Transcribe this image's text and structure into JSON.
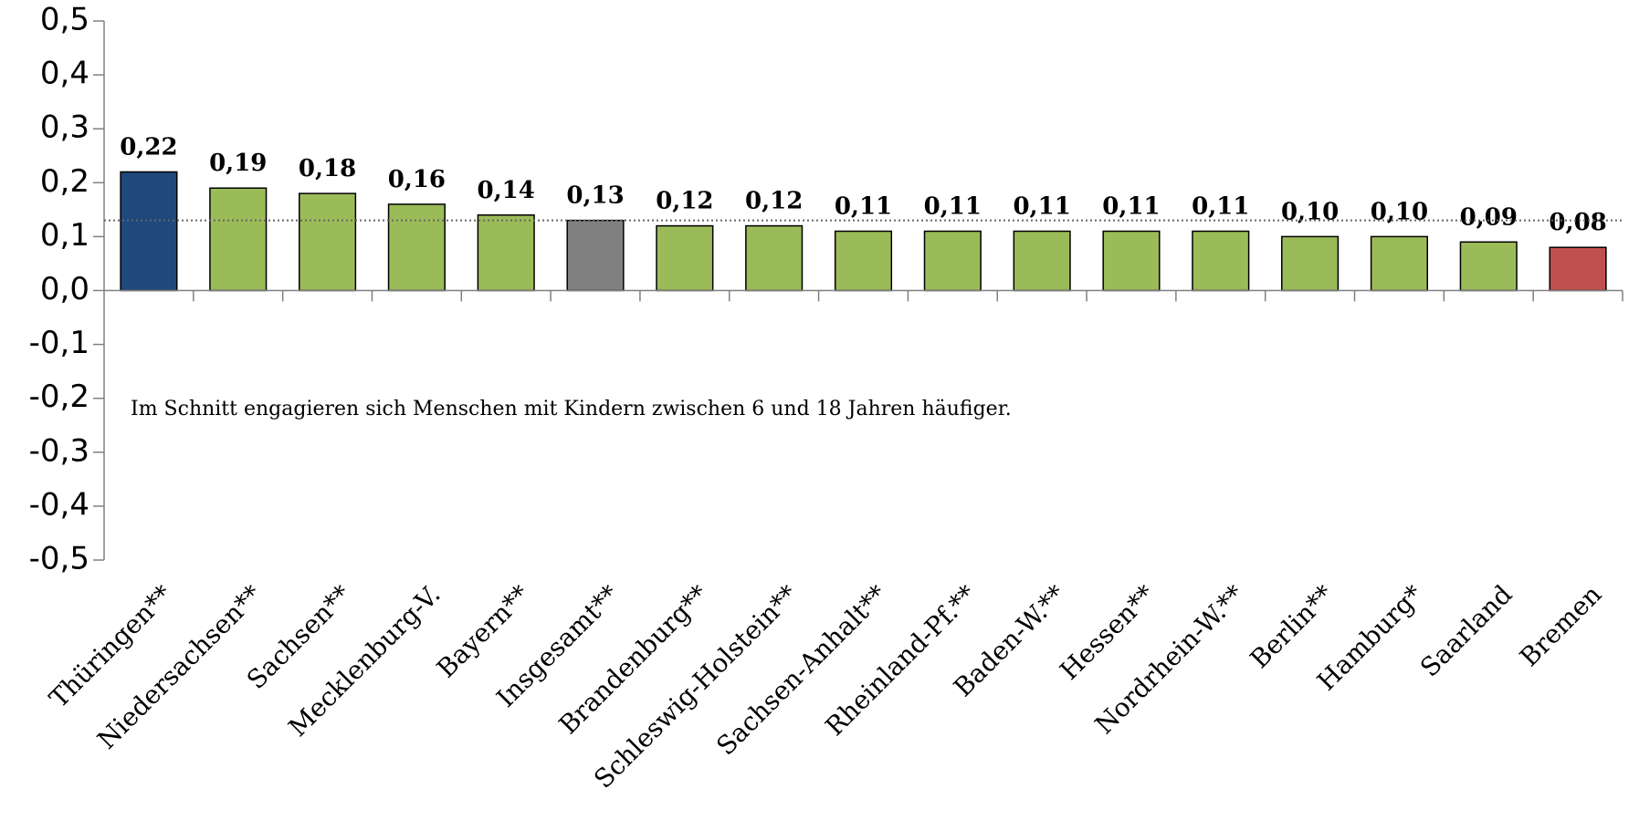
{
  "chart_data": {
    "type": "bar",
    "annotation": "Im Schnitt engagieren sich Menschen mit Kindern zwischen 6 und 18 Jahren häufiger.",
    "categories": [
      "Thüringen**",
      "Niedersachsen**",
      "Sachsen**",
      "Mecklenburg-V.",
      "Bayern**",
      "Insgesamt**",
      "Brandenburg**",
      "Schleswig-Holstein**",
      "Sachsen-Anhalt**",
      "Rheinland-Pf.**",
      "Baden-W.**",
      "Hessen**",
      "Nordrhein-W.**",
      "Berlin**",
      "Hamburg*",
      "Saarland",
      "Bremen"
    ],
    "values": [
      0.22,
      0.19,
      0.18,
      0.16,
      0.14,
      0.13,
      0.12,
      0.12,
      0.11,
      0.11,
      0.11,
      0.11,
      0.11,
      0.1,
      0.1,
      0.09,
      0.08
    ],
    "value_labels": [
      "0,22",
      "0,19",
      "0,18",
      "0,16",
      "0,14",
      "0,13",
      "0,12",
      "0,12",
      "0,11",
      "0,11",
      "0,11",
      "0,11",
      "0,11",
      "0,10",
      "0,10",
      "0,09",
      "0,08"
    ],
    "colors": [
      "#1f497d",
      "#9bbb59",
      "#9bbb59",
      "#9bbb59",
      "#9bbb59",
      "#808080",
      "#9bbb59",
      "#9bbb59",
      "#9bbb59",
      "#9bbb59",
      "#9bbb59",
      "#9bbb59",
      "#9bbb59",
      "#9bbb59",
      "#9bbb59",
      "#9bbb59",
      "#c0504d"
    ],
    "reference_line": 0.13,
    "ylim": [
      -0.5,
      0.5
    ],
    "yticks": [
      {
        "value": -0.5,
        "label": "-0,5"
      },
      {
        "value": -0.4,
        "label": "-0,4"
      },
      {
        "value": -0.3,
        "label": "-0,3"
      },
      {
        "value": -0.2,
        "label": "-0,2"
      },
      {
        "value": -0.1,
        "label": "-0,1"
      },
      {
        "value": 0,
        "label": "0,0"
      },
      {
        "value": 0.1,
        "label": "0,1"
      },
      {
        "value": 0.2,
        "label": "0,2"
      },
      {
        "value": 0.3,
        "label": "0,3"
      },
      {
        "value": 0.4,
        "label": "0,4"
      },
      {
        "value": 0.5,
        "label": "0,5"
      }
    ],
    "grid": false
  }
}
